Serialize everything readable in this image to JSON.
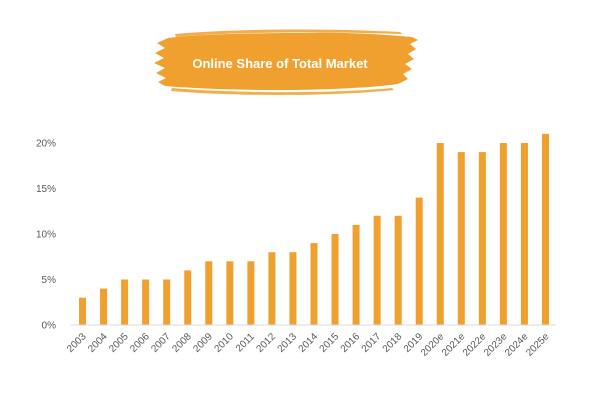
{
  "chart_data": {
    "type": "bar",
    "title": "Online Share of Total Market",
    "xlabel": "",
    "ylabel": "",
    "categories": [
      "2003",
      "2004",
      "2005",
      "2006",
      "2007",
      "2008",
      "2009",
      "2010",
      "2011",
      "2012",
      "2013",
      "2014",
      "2015",
      "2016",
      "2017",
      "2018",
      "2019",
      "2020e",
      "2021e",
      "2022e",
      "2023e",
      "2024e",
      "2025e"
    ],
    "values": [
      3,
      4,
      5,
      5,
      5,
      6,
      7,
      7,
      7,
      8,
      8,
      9,
      10,
      11,
      12,
      12,
      14,
      20,
      19,
      19,
      20,
      20,
      21
    ],
    "yticks": [
      "0%",
      "5%",
      "10%",
      "15%",
      "20%"
    ],
    "ylim": [
      0,
      22
    ],
    "grid": false,
    "legend": "none",
    "colors": {
      "bar": "#F0A02E",
      "banner": "#F0A02E",
      "title_text": "#FFFFFF",
      "axis_text": "#595959",
      "axis_line": "#D9D9D9"
    }
  }
}
